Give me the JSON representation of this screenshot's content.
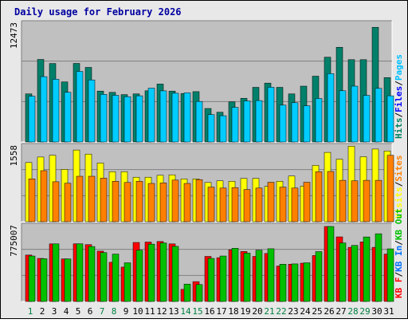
{
  "chart_data": {
    "type": "bar",
    "title": "Daily usage for February 2026",
    "categories": [
      "1",
      "2",
      "3",
      "4",
      "5",
      "6",
      "7",
      "8",
      "9",
      "10",
      "11",
      "12",
      "13",
      "14",
      "15",
      "16",
      "17",
      "18",
      "19",
      "20",
      "21",
      "22",
      "23",
      "24",
      "25",
      "26",
      "27",
      "28",
      "29",
      "30",
      "31"
    ],
    "weekend_days": [
      "1",
      "7",
      "8",
      "14",
      "15",
      "21",
      "22",
      "28",
      "29"
    ],
    "colors": {
      "background": "#c0c0c0",
      "frame": "#e8e8e8",
      "border": "#000000",
      "title": "#0000a0",
      "grid": "#808080",
      "hits": "#008060",
      "files": "#0000ff",
      "pages": "#00c0ff",
      "visits": "#ffff00",
      "sites": "#ff8000",
      "kbin": "#00c000",
      "kbout": "#0070ff",
      "kbf": "#ff0000",
      "weekday_label": "#000000",
      "weekend_label": "#008040"
    },
    "panels": [
      {
        "id": "hits",
        "ymax_label": "12473",
        "ymax": 12473,
        "vertical_label": [
          {
            "text": "Hits",
            "color": "#008060"
          },
          {
            "text": "/",
            "color": "#000000"
          },
          {
            "text": "Files",
            "color": "#0000ff"
          },
          {
            "text": "/",
            "color": "#000000"
          },
          {
            "text": "Pages",
            "color": "#00c0ff"
          }
        ],
        "series": [
          {
            "name": "Hits",
            "color": "#00806a",
            "values": [
              5080,
              8720,
              8290,
              6350,
              8300,
              7880,
              5380,
              5240,
              5010,
              5080,
              5410,
              6120,
              5380,
              5120,
              5320,
              3540,
              3140,
              4240,
              4620,
              5770,
              6220,
              5770,
              5080,
              5900,
              6950,
              8960,
              10000,
              8700,
              8700,
              12120,
              6800
            ]
          },
          {
            "name": "Files",
            "color": "#0000ff",
            "values": []
          },
          {
            "name": "Pages",
            "color": "#00ccff",
            "values": [
              4840,
              6900,
              6620,
              5250,
              7460,
              6560,
              5030,
              4930,
              4790,
              4880,
              5690,
              5400,
              5150,
              5190,
              4280,
              2890,
              2770,
              3660,
              4330,
              4370,
              5780,
              3890,
              4150,
              3830,
              4590,
              7220,
              5410,
              5900,
              4920,
              5660,
              4880
            ]
          }
        ]
      },
      {
        "id": "visits",
        "ymax_label": "1558",
        "ymax": 1558,
        "vertical_label": [
          {
            "text": "Visits",
            "color": "#ffff00"
          },
          {
            "text": "/",
            "color": "#000000"
          },
          {
            "text": "Sites",
            "color": "#ff8000"
          }
        ],
        "series": [
          {
            "name": "Visits",
            "color": "#ffff00",
            "values": [
              1230,
              1345,
              1380,
              1088,
              1490,
              1406,
              1220,
              1040,
              1040,
              925,
              925,
              965,
              975,
              890,
              890,
              815,
              850,
              840,
              900,
              900,
              735,
              840,
              950,
              740,
              1170,
              1440,
              1300,
              1570,
              1350,
              1510,
              1470
            ]
          },
          {
            "name": "Sites",
            "color": "#ff8000",
            "values": [
              890,
              1060,
              830,
              800,
              945,
              945,
              905,
              840,
              815,
              840,
              795,
              805,
              865,
              795,
              875,
              720,
              700,
              710,
              670,
              700,
              820,
              720,
              700,
              820,
              1040,
              1045,
              860,
              850,
              860,
              860,
              1380
            ]
          }
        ]
      },
      {
        "id": "kbytes",
        "ymax_label": "775007",
        "ymax": 775007,
        "vertical_label": [
          {
            "text": "KB F",
            "color": "#ff0000"
          },
          {
            "text": "/",
            "color": "#000000"
          },
          {
            "text": "KB In",
            "color": "#0070ff"
          },
          {
            "text": "/",
            "color": "#000000"
          },
          {
            "text": "KB Out",
            "color": "#00c000"
          }
        ],
        "series": [
          {
            "name": "KB F",
            "color": "#ff0000",
            "values": [
              480000,
              445000,
              595000,
              440000,
              596000,
              588000,
              520000,
              405000,
              355000,
              610000,
              614000,
              620000,
              595000,
              125000,
              205000,
              466000,
              453000,
              535000,
              517000,
              466000,
              496000,
              366000,
              385000,
              396000,
              475000,
              775000,
              668000,
              560000,
              615000,
              560000,
              490000
            ]
          },
          {
            "name": "KB Out",
            "color": "#00c000",
            "values": [
              470000,
              442000,
              595000,
              440000,
              596000,
              568000,
              505000,
              490000,
              400000,
              530000,
              593000,
              605000,
              570000,
              180000,
              175000,
              445000,
              470000,
              550000,
              500000,
              530000,
              545000,
              385000,
              388000,
              400000,
              515000,
              775000,
              605000,
              580000,
              667000,
              700000,
              544000
            ]
          }
        ]
      }
    ]
  }
}
